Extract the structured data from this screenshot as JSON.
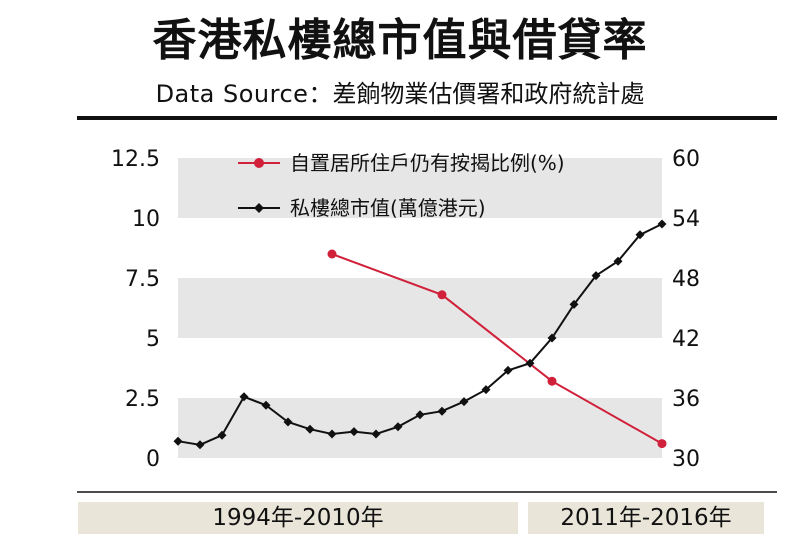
{
  "header": {
    "title": "香港私樓總市值與借貸率",
    "source_label": "Data  Source",
    "source_colon": "：",
    "source_text": "差餉物業估價署和政府統計處"
  },
  "footer": {
    "period_left": "1994年-2010年",
    "period_right": "2011年-2016年"
  },
  "colors": {
    "ratio_series": "#d0203a",
    "value_series": "#111111",
    "band": "#e6e6e6"
  },
  "chart_data": {
    "type": "line",
    "title": "香港私樓總市值與借貸率",
    "y_left": {
      "ticks": [
        "12.5",
        "10",
        "7.5",
        "5",
        "2.5",
        "0"
      ],
      "range": [
        0,
        12.5
      ]
    },
    "y_right": {
      "ticks": [
        "60",
        "54",
        "48",
        "42",
        "36",
        "30"
      ],
      "range": [
        30,
        60
      ]
    },
    "legend_position": "top-center",
    "grid": "alternating horizontal bands",
    "series": [
      {
        "name": "自置居所住戶仍有按揭比例(%)",
        "axis": "left",
        "marker": "circle",
        "points": [
          {
            "x": 2001,
            "y": 8.5
          },
          {
            "x": 2006,
            "y": 6.8
          },
          {
            "x": 2011,
            "y": 3.2
          },
          {
            "x": 2016,
            "y": 0.6
          }
        ]
      },
      {
        "name": "私樓總市值(萬億港元)",
        "axis": "left",
        "marker": "diamond",
        "points": [
          {
            "x": 1994,
            "y": 0.7
          },
          {
            "x": 1995,
            "y": 0.55
          },
          {
            "x": 1996,
            "y": 0.95
          },
          {
            "x": 1997,
            "y": 2.55
          },
          {
            "x": 1998,
            "y": 2.2
          },
          {
            "x": 1999,
            "y": 1.5
          },
          {
            "x": 2000,
            "y": 1.2
          },
          {
            "x": 2001,
            "y": 1.0
          },
          {
            "x": 2002,
            "y": 1.1
          },
          {
            "x": 2003,
            "y": 1.0
          },
          {
            "x": 2004,
            "y": 1.3
          },
          {
            "x": 2005,
            "y": 1.8
          },
          {
            "x": 2006,
            "y": 1.95
          },
          {
            "x": 2007,
            "y": 2.35
          },
          {
            "x": 2008,
            "y": 2.85
          },
          {
            "x": 2009,
            "y": 3.65
          },
          {
            "x": 2010,
            "y": 3.95
          },
          {
            "x": 2011,
            "y": 5.0
          },
          {
            "x": 2012,
            "y": 6.4
          },
          {
            "x": 2013,
            "y": 7.6
          },
          {
            "x": 2014,
            "y": 8.2
          },
          {
            "x": 2015,
            "y": 9.3
          },
          {
            "x": 2016,
            "y": 9.75
          }
        ]
      }
    ]
  }
}
